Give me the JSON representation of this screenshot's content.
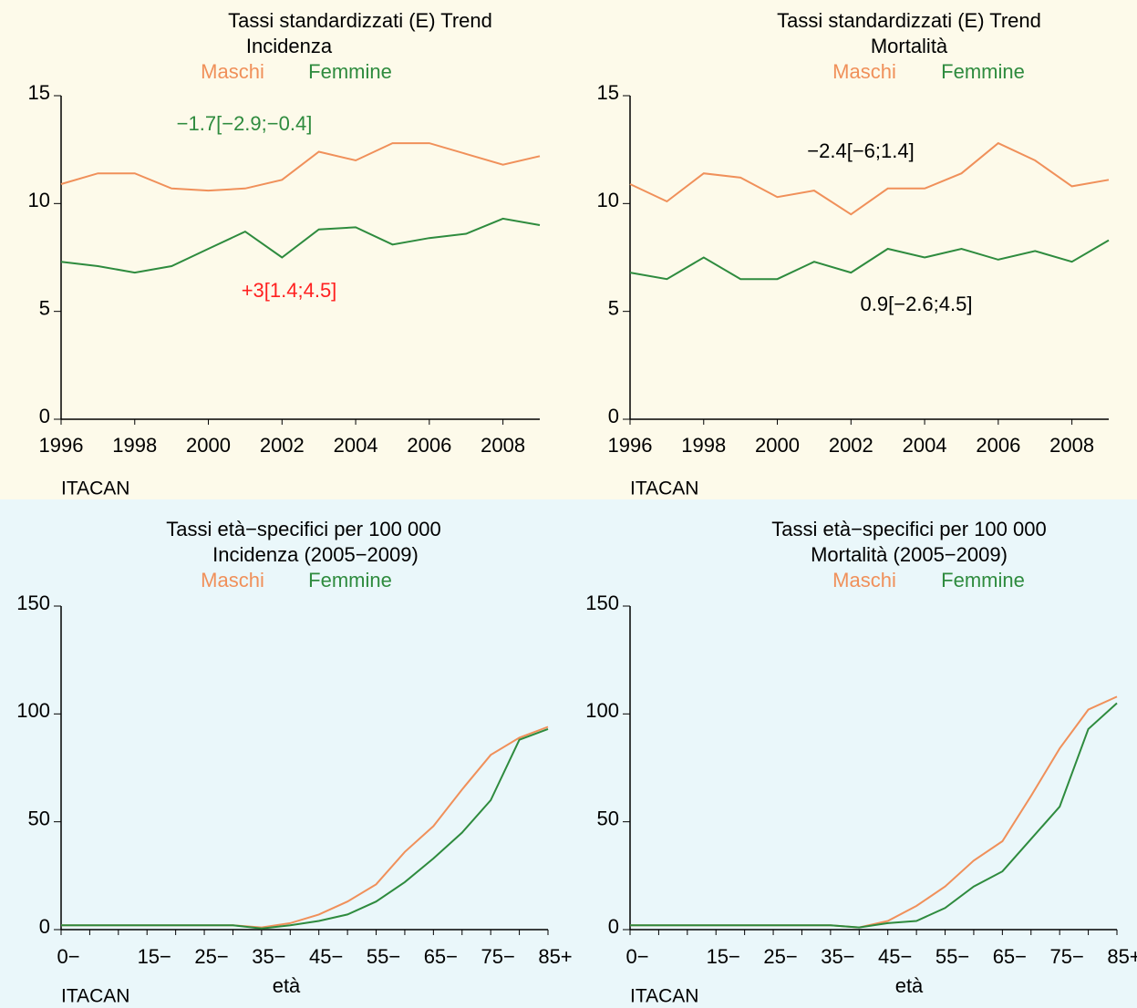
{
  "chart_data": [
    {
      "type": "line",
      "title": "Tassi standardizzati (E) Trend",
      "subtitle": "Incidenza",
      "x": [
        1996,
        1997,
        1998,
        1999,
        2000,
        2001,
        2002,
        2003,
        2004,
        2005,
        2006,
        2007,
        2008,
        2009
      ],
      "series": [
        {
          "name": "Maschi",
          "color": "#f0905a",
          "values": [
            10.9,
            11.4,
            11.4,
            10.7,
            10.6,
            10.7,
            11.1,
            12.4,
            12.0,
            12.8,
            12.8,
            12.3,
            11.8,
            12.2
          ]
        },
        {
          "name": "Femmine",
          "color": "#2e8b3e",
          "values": [
            7.3,
            7.1,
            6.8,
            7.1,
            7.9,
            8.7,
            7.5,
            8.8,
            8.9,
            8.1,
            8.4,
            8.6,
            9.3,
            9.0
          ]
        }
      ],
      "xlim": [
        1996,
        2009
      ],
      "xticks": [
        1996,
        1998,
        2000,
        2002,
        2004,
        2006,
        2008
      ],
      "ylim": [
        0,
        15
      ],
      "yticks": [
        0,
        5,
        10,
        15
      ],
      "annotations": [
        {
          "text": "−1.7[−2.9;−0.4]",
          "color": "#2e8b3e"
        },
        {
          "text": "+3[1.4;4.5]",
          "color": "#ff2020"
        }
      ],
      "source": "ITACAN"
    },
    {
      "type": "line",
      "title": "Tassi standardizzati (E) Trend",
      "subtitle": "Mortalità",
      "x": [
        1996,
        1997,
        1998,
        1999,
        2000,
        2001,
        2002,
        2003,
        2004,
        2005,
        2006,
        2007,
        2008,
        2009
      ],
      "series": [
        {
          "name": "Maschi",
          "color": "#f0905a",
          "values": [
            10.9,
            10.1,
            11.4,
            11.2,
            10.3,
            10.6,
            9.5,
            10.7,
            10.7,
            11.4,
            12.8,
            12.0,
            10.8,
            11.1
          ]
        },
        {
          "name": "Femmine",
          "color": "#2e8b3e",
          "values": [
            6.8,
            6.5,
            7.5,
            6.5,
            6.5,
            7.3,
            6.8,
            7.9,
            7.5,
            7.9,
            7.4,
            7.8,
            7.3,
            8.3
          ]
        }
      ],
      "xlim": [
        1996,
        2009
      ],
      "xticks": [
        1996,
        1998,
        2000,
        2002,
        2004,
        2006,
        2008
      ],
      "ylim": [
        0,
        15
      ],
      "yticks": [
        0,
        5,
        10,
        15
      ],
      "annotations": [
        {
          "text": "−2.4[−6;1.4]",
          "color": "#000000"
        },
        {
          "text": "0.9[−2.6;4.5]",
          "color": "#000000"
        }
      ],
      "source": "ITACAN"
    },
    {
      "type": "line",
      "title": "Tassi età−specifici per 100 000",
      "subtitle": "Incidenza (2005−2009)",
      "categories": [
        "0−",
        null,
        null,
        "15−",
        null,
        "25−",
        null,
        "35−",
        null,
        "45−",
        null,
        "55−",
        null,
        "65−",
        null,
        "75−",
        null,
        "85+"
      ],
      "series": [
        {
          "name": "Maschi",
          "color": "#f0905a",
          "values": [
            2,
            2,
            2,
            2,
            2,
            2,
            2,
            1,
            3,
            7,
            13,
            21,
            36,
            48,
            65,
            81,
            89,
            94
          ]
        },
        {
          "name": "Femmine",
          "color": "#2e8b3e",
          "values": [
            2,
            2,
            2,
            2,
            2,
            2,
            2,
            0.5,
            2,
            4,
            7,
            13,
            22,
            33,
            45,
            60,
            88,
            93
          ]
        }
      ],
      "ylim": [
        0,
        150
      ],
      "yticks": [
        0,
        50,
        100,
        150
      ],
      "xlabel": "età",
      "source": "ITACAN"
    },
    {
      "type": "line",
      "title": "Tassi età−specifici per 100 000",
      "subtitle": "Mortalità (2005−2009)",
      "categories": [
        "0−",
        null,
        null,
        "15−",
        null,
        "25−",
        null,
        "35−",
        null,
        "45−",
        null,
        "55−",
        null,
        "65−",
        null,
        "75−",
        null,
        "85+"
      ],
      "series": [
        {
          "name": "Maschi",
          "color": "#f0905a",
          "values": [
            2,
            2,
            2,
            2,
            2,
            2,
            2,
            2,
            1,
            4,
            11,
            20,
            32,
            41,
            62,
            84,
            102,
            108
          ]
        },
        {
          "name": "Femmine",
          "color": "#2e8b3e",
          "values": [
            2,
            2,
            2,
            2,
            2,
            2,
            2,
            2,
            1,
            3,
            4,
            10,
            20,
            27,
            42,
            57,
            93,
            105
          ]
        }
      ],
      "ylim": [
        0,
        150
      ],
      "yticks": [
        0,
        50,
        100,
        150
      ],
      "xlabel": "età",
      "source": "ITACAN"
    }
  ]
}
